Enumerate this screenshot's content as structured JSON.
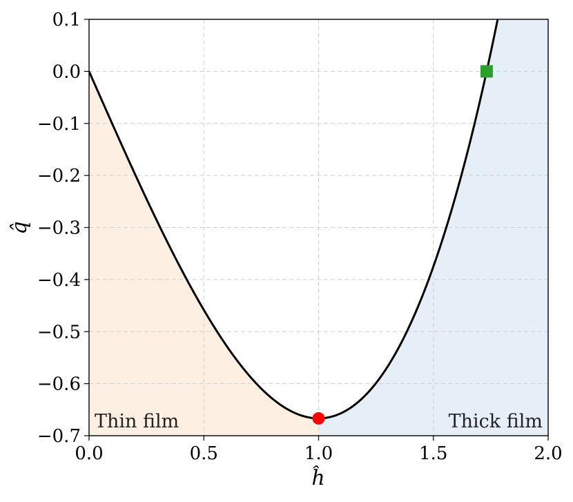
{
  "chart_data": {
    "type": "line",
    "xlabel": "ĥ",
    "ylabel": "q̂",
    "xlim": [
      0.0,
      2.0
    ],
    "ylim": [
      -0.7,
      0.1
    ],
    "xticks": [
      "0.0",
      "0.5",
      "1.0",
      "1.5",
      "2.0"
    ],
    "yticks": [
      "0.1",
      "0.0",
      "−0.1",
      "−0.2",
      "−0.3",
      "−0.4",
      "−0.5",
      "−0.6",
      "−0.7"
    ],
    "grid": true,
    "series": [
      {
        "formula": "q = h^3/3 - h",
        "x": [
          0.0,
          0.1,
          0.2,
          0.3,
          0.4,
          0.5,
          0.6,
          0.7,
          0.8,
          0.9,
          1.0,
          1.1,
          1.2,
          1.3,
          1.4,
          1.5,
          1.6,
          1.7,
          1.78
        ],
        "y": [
          0.0,
          -0.0997,
          -0.1973,
          -0.291,
          -0.3787,
          -0.4583,
          -0.528,
          -0.5857,
          -0.6293,
          -0.657,
          -0.6667,
          -0.6563,
          -0.624,
          -0.5677,
          -0.4853,
          -0.375,
          -0.2347,
          -0.0623,
          0.1
        ]
      }
    ],
    "regions": [
      {
        "label": "Thin film",
        "x_range": [
          0.0,
          1.0
        ],
        "color": "#fdf0e3"
      },
      {
        "label": "Thick film",
        "x_range": [
          1.0,
          2.0
        ],
        "color": "#e6eef7"
      }
    ],
    "markers": [
      {
        "shape": "circle",
        "x": 1.0,
        "y": -0.6667,
        "color": "#ff0000"
      },
      {
        "shape": "square",
        "x": 1.732,
        "y": 0.0,
        "color": "#2ca02c"
      }
    ],
    "line_color": "#000000"
  }
}
